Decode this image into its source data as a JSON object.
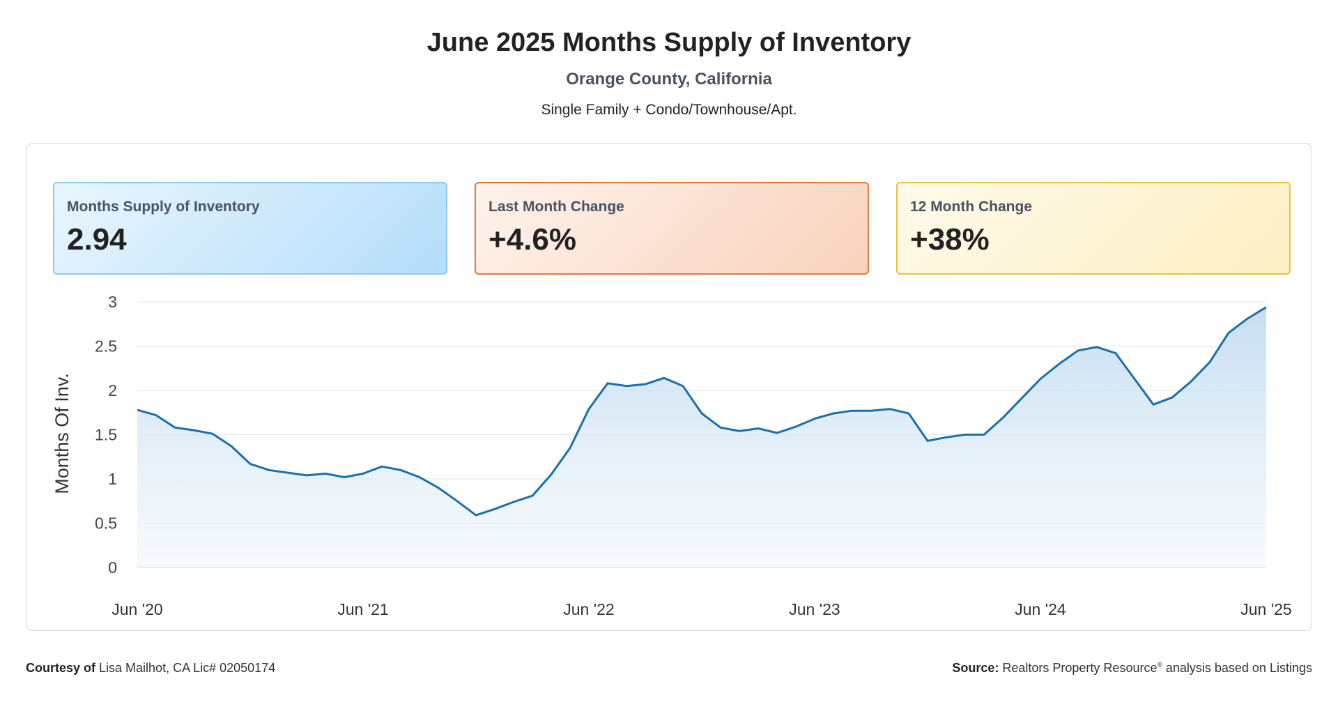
{
  "header": {
    "title": "June 2025 Months Supply of Inventory",
    "subtitle": "Orange County, California",
    "property_types": "Single Family + Condo/Townhouse/Apt."
  },
  "stats": [
    {
      "label": "Months Supply of Inventory",
      "value": "2.94",
      "accent": "#8ccbf0"
    },
    {
      "label": "Last Month Change",
      "value": "+4.6%",
      "accent": "#e07a3a"
    },
    {
      "label": "12 Month Change",
      "value": "+38%",
      "accent": "#e8c43a"
    }
  ],
  "chart_data": {
    "type": "area",
    "ylabel": "Months Of Inv.",
    "ylim": [
      0,
      3
    ],
    "yticks": [
      "0",
      "0.5",
      "1",
      "1.5",
      "2",
      "2.5",
      "3"
    ],
    "xticks": [
      "Jun '20",
      "Jun '21",
      "Jun '22",
      "Jun '23",
      "Jun '24",
      "Jun '25"
    ],
    "x_start": "Jun 2020",
    "x_end": "Jun 2025",
    "grid": true,
    "series": [
      {
        "color": "#1a6fad",
        "values": [
          1.78,
          1.72,
          1.58,
          1.55,
          1.51,
          1.37,
          1.17,
          1.1,
          1.07,
          1.04,
          1.06,
          1.02,
          1.06,
          1.14,
          1.1,
          1.02,
          0.9,
          0.75,
          0.59,
          0.66,
          0.74,
          0.81,
          1.05,
          1.35,
          1.79,
          2.08,
          2.05,
          2.07,
          2.14,
          2.05,
          1.74,
          1.58,
          1.54,
          1.57,
          1.52,
          1.59,
          1.68,
          1.74,
          1.77,
          1.77,
          1.79,
          1.74,
          1.43,
          1.47,
          1.5,
          1.5,
          1.69,
          1.91,
          2.13,
          2.3,
          2.45,
          2.49,
          2.42,
          2.13,
          1.84,
          1.92,
          2.1,
          2.32,
          2.65,
          2.81,
          2.94
        ]
      }
    ]
  },
  "footer": {
    "courtesy_label": "Courtesy of",
    "courtesy_text": "Lisa Mailhot, CA Lic# 02050174",
    "source_label": "Source:",
    "source_name": "Realtors Property Resource",
    "source_mark": "®",
    "source_text": "analysis based on Listings"
  }
}
